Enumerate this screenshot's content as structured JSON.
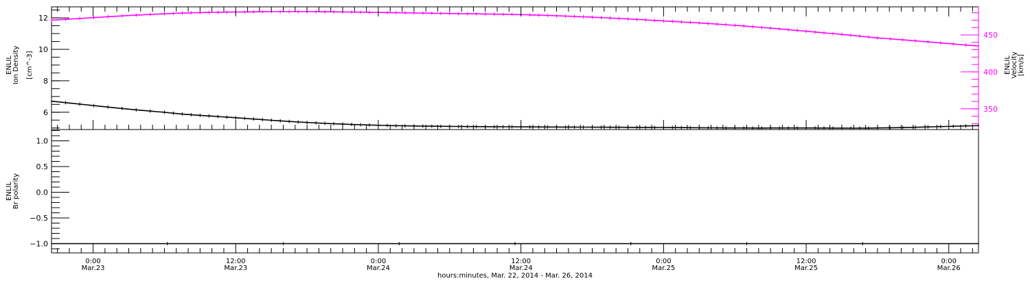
{
  "x_axis": {
    "ticks": [
      {
        "time": "0:00",
        "date": "Mar.23"
      },
      {
        "time": "12:00",
        "date": "Mar.23"
      },
      {
        "time": "0:00",
        "date": "Mar.24"
      },
      {
        "time": "12:00",
        "date": "Mar.24"
      },
      {
        "time": "0:00",
        "date": "Mar.25"
      },
      {
        "time": "12:00",
        "date": "Mar.25"
      },
      {
        "time": "0:00",
        "date": "Mar.26"
      }
    ],
    "title": "hours:minutes, Mar. 22, 2014 - Mar. 26, 2014"
  },
  "colors": {
    "axis": "#000000",
    "density": "#000000",
    "velocity": "#ff00ff",
    "polarity": "#000000"
  },
  "chart_data": [
    {
      "type": "line",
      "panel": "top",
      "x_range": [
        "2014-03-22T20:30",
        "2014-03-26T02:30"
      ],
      "series": [
        {
          "name": "ENLIL Ion Density",
          "axis": "left",
          "ylabel": [
            "ENLIL",
            "Ion Density",
            "[cm^-3]"
          ],
          "y_ticks": [
            6,
            8,
            10,
            12
          ],
          "ylim": [
            4.9,
            12.7
          ],
          "x": [
            "2014-03-22T20:30",
            "2014-03-23T06:00",
            "2014-03-23T12:00",
            "2014-03-23T18:00",
            "2014-03-24T00:00",
            "2014-03-24T06:00",
            "2014-03-24T12:00",
            "2014-03-24T18:00",
            "2014-03-25T00:00",
            "2014-03-25T06:00",
            "2014-03-25T12:00",
            "2014-03-25T18:00",
            "2014-03-26T02:30"
          ],
          "values": [
            6.7,
            6.0,
            5.65,
            5.35,
            5.17,
            5.1,
            5.07,
            5.05,
            5.03,
            5.0,
            5.0,
            5.0,
            5.15
          ]
        },
        {
          "name": "ENLIL Velocity",
          "axis": "right",
          "ylabel": [
            "ENLIL",
            "Velocity",
            "[km/s]"
          ],
          "y_ticks": [
            350,
            400,
            450
          ],
          "ylim": [
            322,
            488
          ],
          "x": [
            "2014-03-22T20:30",
            "2014-03-23T06:00",
            "2014-03-23T12:00",
            "2014-03-23T18:00",
            "2014-03-24T00:00",
            "2014-03-24T06:00",
            "2014-03-24T12:00",
            "2014-03-24T18:00",
            "2014-03-25T00:00",
            "2014-03-25T06:00",
            "2014-03-25T12:00",
            "2014-03-25T18:00",
            "2014-03-26T02:30"
          ],
          "values": [
            470,
            478.5,
            481,
            481.5,
            480.5,
            479,
            477.5,
            474,
            469,
            463,
            455,
            446,
            435
          ]
        }
      ]
    },
    {
      "type": "line",
      "panel": "bottom",
      "x_range": [
        "2014-03-22T20:30",
        "2014-03-26T02:30"
      ],
      "series": [
        {
          "name": "ENLIL Br polarity",
          "axis": "left",
          "ylabel": [
            "ENLIL",
            "Br polarity"
          ],
          "y_ticks": [
            -1.0,
            -0.5,
            0.0,
            0.5,
            1.0
          ],
          "y_tick_labels": [
            "−1.0",
            "−0.5",
            "0.0",
            "0.5",
            "1.0"
          ],
          "ylim": [
            -1.18,
            1.22
          ],
          "x": [
            "2014-03-22T20:30",
            "2014-03-26T02:30"
          ],
          "values": [
            -1.0,
            -1.0
          ]
        }
      ]
    }
  ]
}
